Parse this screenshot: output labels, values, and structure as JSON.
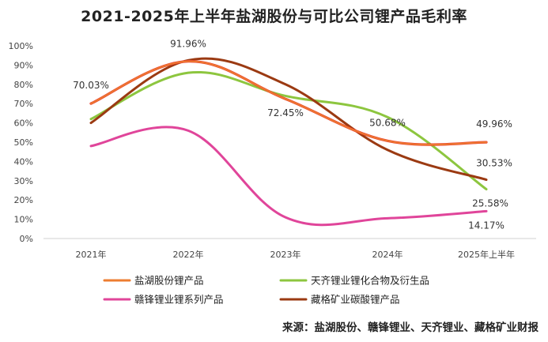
{
  "chart_data": {
    "type": "line",
    "title": "2021-2025年上半年盐湖股份与可比公司锂产品毛利率",
    "xlabel": "",
    "ylabel": "",
    "categories": [
      "2021年",
      "2022年",
      "2023年",
      "2024年",
      "2025年上半年"
    ],
    "y_ticks": [
      "0%",
      "10%",
      "20%",
      "30%",
      "40%",
      "50%",
      "60%",
      "70%",
      "80%",
      "90%",
      "100%"
    ],
    "ylim": [
      0,
      100
    ],
    "grid": false,
    "legend_position": "bottom",
    "series": [
      {
        "name": "盐湖股份锂产品",
        "color": "#ed7d31",
        "values": [
          70.03,
          91.96,
          72.45,
          50.68,
          49.96
        ],
        "labels": [
          "70.03%",
          "91.96%",
          "72.45%",
          "50.68%",
          "49.96%"
        ]
      },
      {
        "name": "天齐锂业锂化合物及衍生品",
        "color": "#8dc63f",
        "values": [
          62,
          86,
          74,
          63,
          25.58
        ],
        "labels": [
          "",
          "",
          "",
          "",
          "25.58%"
        ]
      },
      {
        "name": "赣锋锂业锂系列产品",
        "color": "#e0459a",
        "values": [
          48,
          56,
          11,
          10.5,
          14.17
        ],
        "labels": [
          "",
          "",
          "",
          "",
          "14.17%"
        ]
      },
      {
        "name": "藏格矿业碳酸锂产品",
        "color": "#9b3a12",
        "values": [
          60,
          92.5,
          80,
          46,
          30.53
        ],
        "labels": [
          "",
          "",
          "",
          "",
          "30.53%"
        ]
      }
    ],
    "highlight_series_color": "#e8362c"
  },
  "source": "来源：盐湖股份、赣锋锂业、天齐锂业、藏格矿业财报"
}
